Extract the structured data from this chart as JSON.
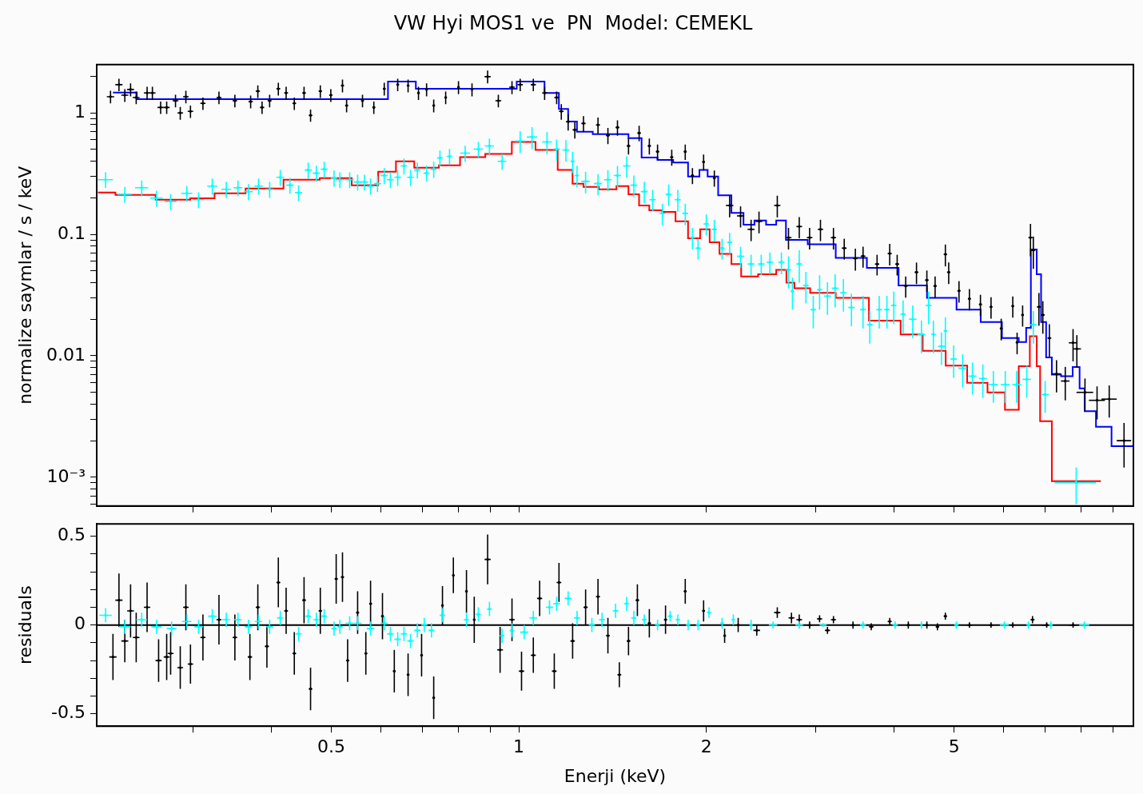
{
  "chart_data": [
    {
      "type": "scatter",
      "title": "VW Hyi MOS1 ve  PN  Model: CEMEKL",
      "ylabel": "normalize saymlar / s / keV",
      "log": "xy",
      "tick_labels": "y",
      "xlim": [
        0.21,
        9.7
      ],
      "xticks": [
        {
          "value": 0.3,
          "label": null
        },
        {
          "value": 0.4,
          "label": null
        },
        0.5,
        {
          "value": 0.6,
          "label": null
        },
        {
          "value": 0.7,
          "label": null
        },
        {
          "value": 0.8,
          "label": null
        },
        {
          "value": 0.9,
          "label": null
        },
        1,
        2,
        {
          "value": 3,
          "label": null
        },
        {
          "value": 4,
          "label": null
        },
        5,
        {
          "value": 6,
          "label": null
        },
        {
          "value": 7,
          "label": null
        },
        {
          "value": 8,
          "label": null
        },
        {
          "value": 9,
          "label": null
        }
      ],
      "ylim": [
        0.00058,
        2.5
      ],
      "yticks": [
        {
          "value": 0.0006,
          "label": null
        },
        {
          "value": 0.0007,
          "label": null
        },
        {
          "value": 0.0008,
          "label": null
        },
        {
          "value": 0.0009,
          "label": null
        },
        {
          "value": 0.001,
          "label": "10⁻³"
        },
        {
          "value": 0.002,
          "label": null
        },
        {
          "value": 0.003,
          "label": null
        },
        {
          "value": 0.004,
          "label": null
        },
        {
          "value": 0.005,
          "label": null
        },
        {
          "value": 0.006,
          "label": null
        },
        {
          "value": 0.007,
          "label": null
        },
        {
          "value": 0.008,
          "label": null
        },
        {
          "value": 0.009,
          "label": null
        },
        0.01,
        {
          "value": 0.02,
          "label": null
        },
        {
          "value": 0.03,
          "label": null
        },
        {
          "value": 0.04,
          "label": null
        },
        {
          "value": 0.05,
          "label": null
        },
        {
          "value": 0.06,
          "label": null
        },
        {
          "value": 0.07,
          "label": null
        },
        {
          "value": 0.08,
          "label": null
        },
        {
          "value": 0.09,
          "label": null
        },
        0.1,
        {
          "value": 0.2,
          "label": null
        },
        {
          "value": 0.3,
          "label": null
        },
        {
          "value": 0.4,
          "label": null
        },
        {
          "value": 0.5,
          "label": null
        },
        {
          "value": 0.6,
          "label": null
        },
        {
          "value": 0.7,
          "label": null
        },
        {
          "value": 0.8,
          "label": null
        },
        {
          "value": 0.9,
          "label": null
        },
        1,
        {
          "value": 2,
          "label": null
        }
      ],
      "series": [
        {
          "color": "#000000",
          "x": [
            0.221,
            0.228,
            0.233,
            0.238,
            0.243,
            0.253,
            0.258,
            0.266,
            0.272,
            0.281,
            0.286,
            0.292,
            0.297,
            0.311,
            0.33,
            0.35,
            0.371,
            0.381,
            0.387,
            0.398,
            0.411,
            0.423,
            0.436,
            0.452,
            0.463,
            0.48,
            0.499,
            0.521,
            0.529,
            0.561,
            0.585,
            0.608,
            0.639,
            0.664,
            0.69,
            0.711,
            0.73,
            0.763,
            0.8,
            0.841,
            0.891,
            0.927,
            0.975,
            1.005,
            1.055,
            1.1,
            1.15,
            1.17,
            1.2,
            1.23,
            1.27,
            1.34,
            1.39,
            1.44,
            1.5,
            1.56,
            1.62,
            1.67,
            1.76,
            1.85,
            1.9,
            1.98,
            2.06,
            2.18,
            2.27,
            2.36,
            2.43,
            2.6,
            2.71,
            2.82,
            2.93,
            3.05,
            3.2,
            3.33,
            3.47,
            3.57,
            3.76,
            3.94,
            4.05,
            4.18,
            4.35,
            4.52,
            4.66,
            4.84,
            4.9,
            5.09,
            5.29,
            5.51,
            5.73,
            5.95,
            6.21,
            6.31,
            6.44,
            6.63,
            6.7,
            6.84,
            6.94,
            7.11,
            7.3,
            7.54,
            7.76,
            7.87,
            8.11,
            8.48,
            8.87,
            9.37
          ],
          "values": [
            1.36,
            1.71,
            1.4,
            1.56,
            1.34,
            1.46,
            1.46,
            1.11,
            1.11,
            1.26,
            1.0,
            1.36,
            1.03,
            1.2,
            1.34,
            1.26,
            1.24,
            1.51,
            1.11,
            1.26,
            1.58,
            1.46,
            1.2,
            1.46,
            0.955,
            1.51,
            1.4,
            1.68,
            1.15,
            1.26,
            1.11,
            1.58,
            1.71,
            1.68,
            1.46,
            1.56,
            1.15,
            1.34,
            1.63,
            1.56,
            1.99,
            1.26,
            1.63,
            1.71,
            1.71,
            1.46,
            1.34,
            1.03,
            0.846,
            0.726,
            0.82,
            0.796,
            0.653,
            0.76,
            0.535,
            0.683,
            0.535,
            0.48,
            0.432,
            0.48,
            0.305,
            0.395,
            0.291,
            0.173,
            0.142,
            0.11,
            0.128,
            0.173,
            0.094,
            0.116,
            0.094,
            0.11,
            0.094,
            0.077,
            0.0633,
            0.0662,
            0.0569,
            0.0695,
            0.0569,
            0.0376,
            0.0488,
            0.042,
            0.0376,
            0.0685,
            0.0488,
            0.0343,
            0.0295,
            0.0265,
            0.0253,
            0.0168,
            0.0257,
            0.0129,
            0.0217,
            0.094,
            0.074,
            0.0253,
            0.0217,
            0.014,
            0.0071,
            0.0062,
            0.0128,
            0.0114,
            0.005,
            0.0043,
            0.0044,
            0.002
          ],
          "errors": [
            0.16,
            0.2,
            0.17,
            0.19,
            0.16,
            0.18,
            0.18,
            0.13,
            0.13,
            0.15,
            0.12,
            0.16,
            0.12,
            0.14,
            0.16,
            0.15,
            0.15,
            0.18,
            0.13,
            0.15,
            0.19,
            0.18,
            0.14,
            0.18,
            0.11,
            0.18,
            0.17,
            0.2,
            0.14,
            0.15,
            0.13,
            0.19,
            0.2,
            0.2,
            0.18,
            0.19,
            0.14,
            0.16,
            0.2,
            0.19,
            0.24,
            0.15,
            0.2,
            0.2,
            0.2,
            0.18,
            0.16,
            0.15,
            0.13,
            0.11,
            0.12,
            0.12,
            0.1,
            0.11,
            0.08,
            0.1,
            0.08,
            0.07,
            0.065,
            0.07,
            0.046,
            0.06,
            0.044,
            0.035,
            0.028,
            0.022,
            0.026,
            0.035,
            0.019,
            0.023,
            0.019,
            0.022,
            0.019,
            0.015,
            0.013,
            0.013,
            0.011,
            0.014,
            0.011,
            0.0075,
            0.0098,
            0.0084,
            0.0075,
            0.014,
            0.0098,
            0.0069,
            0.0059,
            0.0053,
            0.0051,
            0.0034,
            0.0051,
            0.0026,
            0.0043,
            0.028,
            0.022,
            0.0076,
            0.0065,
            0.0042,
            0.0021,
            0.0019,
            0.0038,
            0.0034,
            0.0015,
            0.0013,
            0.0013,
            0.0008
          ],
          "xerrors": [
            0.003,
            0.003,
            0.003,
            0.003,
            0.003,
            0.003,
            0.003,
            0.003,
            0.003,
            0.003,
            0.003,
            0.003,
            0.003,
            0.003,
            0.003,
            0.003,
            0.003,
            0.003,
            0.003,
            0.003,
            0.003,
            0.003,
            0.003,
            0.003,
            0.003,
            0.003,
            0.003,
            0.003,
            0.003,
            0.003,
            0.003,
            0.003,
            0.003,
            0.003,
            0.003,
            0.003,
            0.003,
            0.003,
            0.003,
            0.003,
            0.01,
            0.01,
            0.01,
            0.01,
            0.01,
            0.01,
            0.01,
            0.01,
            0.01,
            0.01,
            0.01,
            0.01,
            0.01,
            0.01,
            0.01,
            0.01,
            0.01,
            0.01,
            0.01,
            0.01,
            0.01,
            0.01,
            0.01,
            0.03,
            0.03,
            0.03,
            0.03,
            0.03,
            0.03,
            0.03,
            0.03,
            0.03,
            0.03,
            0.03,
            0.03,
            0.03,
            0.03,
            0.03,
            0.03,
            0.03,
            0.03,
            0.03,
            0.03,
            0.03,
            0.03,
            0.03,
            0.03,
            0.03,
            0.03,
            0.03,
            0.03,
            0.03,
            0.03,
            0.05,
            0.05,
            0.05,
            0.05,
            0.05,
            0.12,
            0.12,
            0.12,
            0.12,
            0.25,
            0.25,
            0.25,
            0.25
          ]
        },
        {
          "color": "#00ffff",
          "x": [
            0.217,
            0.233,
            0.248,
            0.262,
            0.276,
            0.293,
            0.306,
            0.322,
            0.339,
            0.354,
            0.368,
            0.382,
            0.398,
            0.414,
            0.429,
            0.443,
            0.459,
            0.473,
            0.487,
            0.505,
            0.516,
            0.535,
            0.551,
            0.565,
            0.578,
            0.593,
            0.608,
            0.622,
            0.639,
            0.654,
            0.67,
            0.687,
            0.711,
            0.73,
            0.747,
            0.774,
            0.82,
            0.861,
            0.897,
            0.94,
            1.005,
            1.05,
            1.11,
            1.15,
            1.19,
            1.22,
            1.24,
            1.28,
            1.34,
            1.39,
            1.44,
            1.49,
            1.53,
            1.59,
            1.64,
            1.7,
            1.74,
            1.8,
            1.85,
            1.9,
            1.94,
            2.0,
            2.06,
            2.12,
            2.18,
            2.27,
            2.36,
            2.45,
            2.53,
            2.64,
            2.71,
            2.75,
            2.82,
            2.89,
            2.97,
            3.04,
            3.13,
            3.22,
            3.32,
            3.42,
            3.57,
            3.66,
            3.79,
            3.9,
            4.0,
            4.14,
            4.29,
            4.43,
            4.55,
            4.63,
            4.77,
            4.84,
            4.99,
            5.16,
            5.35,
            5.56,
            5.78,
            6.04,
            6.3,
            6.54,
            6.7,
            7.0,
            7.85
          ],
          "values": [
            0.282,
            0.214,
            0.242,
            0.199,
            0.187,
            0.218,
            0.193,
            0.25,
            0.235,
            0.242,
            0.225,
            0.25,
            0.235,
            0.295,
            0.254,
            0.221,
            0.339,
            0.319,
            0.344,
            0.291,
            0.282,
            0.282,
            0.27,
            0.27,
            0.25,
            0.262,
            0.305,
            0.282,
            0.295,
            0.366,
            0.295,
            0.339,
            0.319,
            0.344,
            0.426,
            0.439,
            0.467,
            0.503,
            0.535,
            0.4,
            0.586,
            0.633,
            0.577,
            0.503,
            0.496,
            0.4,
            0.305,
            0.273,
            0.262,
            0.282,
            0.305,
            0.366,
            0.254,
            0.225,
            0.193,
            0.149,
            0.214,
            0.193,
            0.149,
            0.094,
            0.077,
            0.122,
            0.11,
            0.077,
            0.086,
            0.066,
            0.057,
            0.057,
            0.059,
            0.059,
            0.051,
            0.034,
            0.057,
            0.038,
            0.024,
            0.035,
            0.031,
            0.036,
            0.033,
            0.025,
            0.024,
            0.018,
            0.024,
            0.024,
            0.026,
            0.022,
            0.02,
            0.015,
            0.026,
            0.015,
            0.012,
            0.016,
            0.0094,
            0.0079,
            0.0068,
            0.0065,
            0.0058,
            0.0058,
            0.0058,
            0.0064,
            0.018,
            0.0048,
            0.0009
          ],
          "errors": [
            0.042,
            0.032,
            0.036,
            0.03,
            0.028,
            0.033,
            0.029,
            0.038,
            0.035,
            0.036,
            0.034,
            0.038,
            0.035,
            0.044,
            0.038,
            0.033,
            0.051,
            0.048,
            0.052,
            0.044,
            0.042,
            0.042,
            0.04,
            0.04,
            0.038,
            0.039,
            0.046,
            0.042,
            0.044,
            0.055,
            0.044,
            0.051,
            0.048,
            0.052,
            0.064,
            0.066,
            0.07,
            0.075,
            0.08,
            0.06,
            0.12,
            0.13,
            0.12,
            0.1,
            0.1,
            0.08,
            0.061,
            0.055,
            0.052,
            0.056,
            0.061,
            0.073,
            0.051,
            0.045,
            0.039,
            0.03,
            0.043,
            0.039,
            0.03,
            0.019,
            0.015,
            0.024,
            0.022,
            0.015,
            0.017,
            0.013,
            0.011,
            0.011,
            0.012,
            0.012,
            0.015,
            0.01,
            0.017,
            0.011,
            0.0072,
            0.011,
            0.0093,
            0.011,
            0.0099,
            0.0075,
            0.0072,
            0.0054,
            0.0072,
            0.0072,
            0.0078,
            0.0066,
            0.006,
            0.0045,
            0.0078,
            0.0045,
            0.0036,
            0.0048,
            0.0028,
            0.0024,
            0.002,
            0.002,
            0.0017,
            0.0017,
            0.0017,
            0.0019,
            0.0054,
            0.0014,
            0.0003
          ],
          "xerrors": [
            0.006,
            0.006,
            0.006,
            0.006,
            0.006,
            0.006,
            0.006,
            0.006,
            0.006,
            0.006,
            0.006,
            0.006,
            0.006,
            0.006,
            0.006,
            0.006,
            0.006,
            0.006,
            0.006,
            0.006,
            0.008,
            0.008,
            0.008,
            0.008,
            0.008,
            0.008,
            0.008,
            0.008,
            0.008,
            0.008,
            0.008,
            0.008,
            0.008,
            0.008,
            0.008,
            0.008,
            0.015,
            0.015,
            0.015,
            0.015,
            0.02,
            0.02,
            0.02,
            0.015,
            0.015,
            0.01,
            0.01,
            0.02,
            0.02,
            0.02,
            0.02,
            0.02,
            0.02,
            0.02,
            0.02,
            0.02,
            0.02,
            0.02,
            0.02,
            0.02,
            0.02,
            0.02,
            0.02,
            0.02,
            0.02,
            0.03,
            0.03,
            0.03,
            0.03,
            0.03,
            0.03,
            0.02,
            0.03,
            0.03,
            0.03,
            0.03,
            0.04,
            0.04,
            0.04,
            0.04,
            0.04,
            0.04,
            0.04,
            0.04,
            0.04,
            0.04,
            0.06,
            0.06,
            0.05,
            0.04,
            0.06,
            0.03,
            0.06,
            0.08,
            0.08,
            0.08,
            0.1,
            0.1,
            0.1,
            0.1,
            0.08,
            0.1,
            0.6
          ]
        },
        {
          "type": "step",
          "color": "#0000ff",
          "x": [
            0.223,
            0.266,
            0.357,
            0.59,
            0.644,
            0.725,
            0.92,
            1.07,
            1.13,
            1.19,
            1.21,
            1.27,
            1.36,
            1.47,
            1.53,
            1.62,
            1.72,
            1.82,
            1.92,
            1.98,
            2.04,
            2.14,
            2.25,
            2.34,
            2.44,
            2.55,
            2.63,
            2.74,
            3.09,
            3.37,
            3.89,
            4.26,
            4.8,
            5.3,
            5.74,
            6.2,
            6.5,
            6.55,
            6.73,
            6.84,
            6.95,
            7.1,
            7.25,
            7.6,
            7.9,
            8.0,
            8.2,
            8.7,
            9.2,
            9.7
          ],
          "values": [
            1.47,
            1.3,
            1.3,
            1.3,
            1.81,
            1.58,
            1.58,
            1.81,
            1.46,
            1.08,
            0.85,
            0.7,
            0.67,
            0.67,
            0.62,
            0.43,
            0.41,
            0.39,
            0.3,
            0.34,
            0.3,
            0.21,
            0.15,
            0.12,
            0.13,
            0.12,
            0.13,
            0.09,
            0.083,
            0.064,
            0.053,
            0.038,
            0.03,
            0.024,
            0.019,
            0.014,
            0.013,
            0.017,
            0.075,
            0.047,
            0.019,
            0.0097,
            0.007,
            0.0068,
            0.0081,
            0.0054,
            0.0035,
            0.0026,
            0.0018,
            0.0018
          ]
        },
        {
          "type": "step",
          "color": "#ff0000",
          "x": [
            0.211,
            0.24,
            0.284,
            0.31,
            0.34,
            0.39,
            0.45,
            0.51,
            0.57,
            0.62,
            0.65,
            0.71,
            0.78,
            0.83,
            0.94,
            1.01,
            1.12,
            1.19,
            1.25,
            1.29,
            1.4,
            1.47,
            1.53,
            1.59,
            1.65,
            1.75,
            1.82,
            1.92,
            1.99,
            2.06,
            2.14,
            2.25,
            2.3,
            2.55,
            2.63,
            2.75,
            2.79,
            3.09,
            3.37,
            3.95,
            4.26,
            4.65,
            5.05,
            5.45,
            5.87,
            6.2,
            6.5,
            6.73,
            6.84,
            6.9,
            7.15,
            7.2,
            8.6
          ],
          "values": [
            0.221,
            0.211,
            0.193,
            0.198,
            0.218,
            0.239,
            0.282,
            0.291,
            0.254,
            0.328,
            0.4,
            0.354,
            0.371,
            0.432,
            0.459,
            0.577,
            0.496,
            0.339,
            0.261,
            0.246,
            0.235,
            0.25,
            0.214,
            0.173,
            0.158,
            0.153,
            0.128,
            0.093,
            0.11,
            0.086,
            0.069,
            0.057,
            0.045,
            0.047,
            0.051,
            0.04,
            0.036,
            0.033,
            0.03,
            0.0195,
            0.015,
            0.011,
            0.0083,
            0.006,
            0.005,
            0.0036,
            0.0082,
            0.0145,
            0.0082,
            0.0029,
            0.0029,
            0.00093,
            0.00093
          ]
        }
      ]
    },
    {
      "type": "scatter",
      "xlabel": "Enerji (keV)",
      "ylabel": "residuals",
      "log": "x",
      "xlim": [
        0.21,
        9.7
      ],
      "xticks": [
        {
          "value": 0.3,
          "label": null
        },
        {
          "value": 0.4,
          "label": null
        },
        0.5,
        {
          "value": 0.6,
          "label": null
        },
        {
          "value": 0.7,
          "label": null
        },
        {
          "value": 0.8,
          "label": null
        },
        {
          "value": 0.9,
          "label": null
        },
        1,
        2,
        {
          "value": 3,
          "label": null
        },
        {
          "value": 4,
          "label": null
        },
        5,
        {
          "value": 6,
          "label": null
        },
        {
          "value": 7,
          "label": null
        },
        {
          "value": 8,
          "label": null
        },
        {
          "value": 9,
          "label": null
        }
      ],
      "ylim": [
        -0.57,
        0.57
      ],
      "yticks": [
        -0.5,
        {
          "value": -0.4,
          "label": null
        },
        {
          "value": -0.3,
          "label": null
        },
        {
          "value": -0.2,
          "label": null
        },
        {
          "value": -0.1,
          "label": null
        },
        0,
        {
          "value": 0.1,
          "label": null
        },
        {
          "value": 0.2,
          "label": null
        },
        {
          "value": 0.3,
          "label": null
        },
        {
          "value": 0.4,
          "label": null
        },
        0.5
      ],
      "ref_lines": [
        {
          "axis": "y",
          "value": 0,
          "color": "#000000"
        }
      ],
      "series": [
        {
          "color": "#000000",
          "x": [
            0.223,
            0.228,
            0.233,
            0.238,
            0.243,
            0.253,
            0.264,
            0.272,
            0.276,
            0.286,
            0.292,
            0.297,
            0.311,
            0.33,
            0.35,
            0.37,
            0.381,
            0.394,
            0.411,
            0.423,
            0.436,
            0.452,
            0.463,
            0.48,
            0.509,
            0.521,
            0.531,
            0.551,
            0.568,
            0.578,
            0.604,
            0.631,
            0.664,
            0.698,
            0.73,
            0.754,
            0.785,
            0.824,
            0.848,
            0.891,
            0.933,
            0.975,
            1.01,
            1.055,
            1.08,
            1.14,
            1.16,
            1.22,
            1.28,
            1.34,
            1.39,
            1.45,
            1.5,
            1.55,
            1.62,
            1.72,
            1.85,
            1.98,
            2.14,
            2.25,
            2.41,
            2.6,
            2.74,
            2.82,
            2.93,
            3.04,
            3.13,
            3.2,
            3.44,
            3.68,
            3.94,
            4.22,
            4.52,
            4.7,
            4.84,
            5.29,
            5.73,
            6.21,
            6.68,
            7.04,
            7.76
          ],
          "values": [
            -0.18,
            0.14,
            -0.09,
            0.08,
            -0.07,
            0.1,
            -0.2,
            -0.18,
            -0.16,
            -0.24,
            0.1,
            -0.22,
            -0.07,
            0.03,
            -0.07,
            -0.18,
            0.1,
            -0.12,
            0.24,
            0.08,
            -0.16,
            0.14,
            -0.36,
            0.08,
            0.26,
            0.27,
            -0.2,
            0.07,
            -0.16,
            0.12,
            0.05,
            -0.26,
            -0.28,
            -0.17,
            -0.41,
            0.11,
            0.28,
            0.19,
            0.03,
            0.37,
            -0.14,
            0.03,
            -0.26,
            -0.17,
            0.15,
            -0.26,
            0.24,
            -0.09,
            0.1,
            0.16,
            -0.06,
            -0.28,
            -0.09,
            0.14,
            0.01,
            0.03,
            0.19,
            0.08,
            -0.06,
            0.0,
            -0.03,
            0.07,
            0.04,
            0.03,
            0.0,
            0.035,
            -0.03,
            0.03,
            0.0,
            -0.01,
            0.02,
            0.0,
            0.0,
            -0.01,
            0.05,
            0.0,
            0.0,
            0.0,
            0.03,
            0.0,
            0.0
          ],
          "errors": [
            0.13,
            0.15,
            0.12,
            0.15,
            0.14,
            0.14,
            0.12,
            0.13,
            0.12,
            0.12,
            0.13,
            0.11,
            0.13,
            0.14,
            0.13,
            0.13,
            0.13,
            0.12,
            0.14,
            0.13,
            0.12,
            0.13,
            0.12,
            0.13,
            0.14,
            0.14,
            0.12,
            0.12,
            0.12,
            0.13,
            0.13,
            0.12,
            0.12,
            0.12,
            0.12,
            0.11,
            0.1,
            0.12,
            0.13,
            0.14,
            0.13,
            0.12,
            0.11,
            0.1,
            0.1,
            0.1,
            0.11,
            0.1,
            0.1,
            0.1,
            0.1,
            0.07,
            0.08,
            0.09,
            0.08,
            0.08,
            0.07,
            0.06,
            0.04,
            0.04,
            0.03,
            0.03,
            0.03,
            0.03,
            0.02,
            0.02,
            0.02,
            0.02,
            0.02,
            0.02,
            0.02,
            0.02,
            0.02,
            0.02,
            0.02,
            0.015,
            0.015,
            0.015,
            0.02,
            0.015,
            0.015
          ],
          "xerrors": [
            0.003,
            0.003,
            0.003,
            0.003,
            0.003,
            0.003,
            0.003,
            0.003,
            0.003,
            0.003,
            0.003,
            0.003,
            0.003,
            0.003,
            0.003,
            0.003,
            0.003,
            0.003,
            0.003,
            0.003,
            0.003,
            0.003,
            0.003,
            0.003,
            0.003,
            0.003,
            0.003,
            0.003,
            0.003,
            0.003,
            0.003,
            0.003,
            0.003,
            0.003,
            0.003,
            0.003,
            0.003,
            0.003,
            0.003,
            0.01,
            0.01,
            0.01,
            0.01,
            0.01,
            0.01,
            0.01,
            0.01,
            0.01,
            0.01,
            0.01,
            0.01,
            0.01,
            0.01,
            0.01,
            0.01,
            0.01,
            0.01,
            0.01,
            0.01,
            0.01,
            0.03,
            0.03,
            0.03,
            0.03,
            0.03,
            0.03,
            0.03,
            0.03,
            0.03,
            0.03,
            0.03,
            0.03,
            0.03,
            0.03,
            0.03,
            0.05,
            0.05,
            0.05,
            0.05,
            0.12,
            0.12
          ]
        },
        {
          "color": "#00ffff",
          "x": [
            0.217,
            0.233,
            0.248,
            0.262,
            0.277,
            0.293,
            0.306,
            0.322,
            0.339,
            0.354,
            0.368,
            0.382,
            0.398,
            0.414,
            0.443,
            0.459,
            0.473,
            0.487,
            0.505,
            0.516,
            0.535,
            0.551,
            0.578,
            0.608,
            0.622,
            0.639,
            0.654,
            0.67,
            0.687,
            0.705,
            0.724,
            0.754,
            0.824,
            0.861,
            0.897,
            0.94,
            0.975,
            1.02,
            1.055,
            1.12,
            1.15,
            1.2,
            1.24,
            1.31,
            1.36,
            1.43,
            1.49,
            1.53,
            1.59,
            1.67,
            1.75,
            1.8,
            1.87,
            1.94,
            2.02,
            2.12,
            2.21,
            2.36,
            2.56,
            2.82,
            3.08,
            3.57,
            4.02,
            4.43,
            5.04,
            6.02,
            6.58,
            7.15,
            8.09
          ],
          "values": [
            0.055,
            -0.01,
            0.03,
            -0.01,
            -0.02,
            0.02,
            -0.01,
            0.05,
            0.03,
            0.03,
            -0.01,
            0.02,
            -0.01,
            0.04,
            -0.05,
            0.05,
            0.03,
            0.05,
            -0.02,
            -0.01,
            0.01,
            0.01,
            -0.02,
            0.01,
            -0.05,
            -0.08,
            -0.05,
            -0.09,
            -0.03,
            0.0,
            -0.03,
            0.055,
            0.03,
            0.06,
            0.09,
            -0.06,
            -0.03,
            -0.04,
            0.04,
            0.1,
            0.12,
            0.15,
            0.04,
            0.0,
            0.03,
            0.08,
            0.12,
            0.04,
            0.03,
            0.0,
            0.05,
            0.03,
            0.0,
            0.0,
            0.07,
            0.01,
            0.03,
            0.0,
            0.0,
            0.0,
            0.0,
            0.0,
            0.0,
            0.0,
            0.0,
            0.0,
            0.0,
            0.0,
            0.0
          ],
          "errors": [
            0.04,
            0.04,
            0.04,
            0.04,
            0.04,
            0.04,
            0.04,
            0.04,
            0.04,
            0.04,
            0.04,
            0.04,
            0.04,
            0.04,
            0.04,
            0.04,
            0.04,
            0.04,
            0.04,
            0.04,
            0.04,
            0.04,
            0.04,
            0.04,
            0.04,
            0.04,
            0.04,
            0.04,
            0.04,
            0.04,
            0.04,
            0.04,
            0.04,
            0.04,
            0.04,
            0.04,
            0.04,
            0.04,
            0.04,
            0.04,
            0.04,
            0.04,
            0.04,
            0.04,
            0.04,
            0.04,
            0.04,
            0.04,
            0.03,
            0.03,
            0.03,
            0.03,
            0.03,
            0.03,
            0.03,
            0.03,
            0.03,
            0.03,
            0.02,
            0.02,
            0.01,
            0.02,
            0.02,
            0.02,
            0.02,
            0.02,
            0.02,
            0.02,
            0.02
          ],
          "xerrors": [
            0.005,
            0.005,
            0.005,
            0.005,
            0.005,
            0.005,
            0.005,
            0.005,
            0.005,
            0.005,
            0.005,
            0.005,
            0.005,
            0.005,
            0.005,
            0.005,
            0.005,
            0.005,
            0.005,
            0.005,
            0.008,
            0.008,
            0.008,
            0.008,
            0.008,
            0.008,
            0.008,
            0.008,
            0.008,
            0.008,
            0.008,
            0.008,
            0.008,
            0.008,
            0.008,
            0.008,
            0.008,
            0.015,
            0.015,
            0.015,
            0.015,
            0.015,
            0.015,
            0.015,
            0.015,
            0.015,
            0.015,
            0.015,
            0.015,
            0.015,
            0.015,
            0.015,
            0.015,
            0.015,
            0.015,
            0.015,
            0.015,
            0.015,
            0.04,
            0.04,
            0.04,
            0.04,
            0.04,
            0.02,
            0.04,
            0.1,
            0.05,
            0.05,
            0.15
          ]
        }
      ]
    }
  ]
}
